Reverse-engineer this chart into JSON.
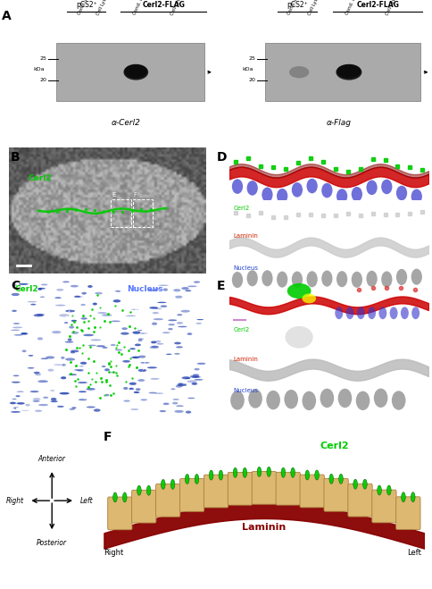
{
  "panel_A_label": "A",
  "panel_B_label": "B",
  "panel_C_label": "C",
  "panel_D_label": "D",
  "panel_E_label": "E",
  "panel_F_label": "F",
  "wb_left_title_pCS2": "pCS2⁺",
  "wb_left_title_cerl2": "Cerl2-FLAG",
  "wb_left_cols": [
    "Cond. Media",
    "Cell Lysate",
    "Cond. Media",
    "Cell Lysate"
  ],
  "wb_left_kda": [
    "25",
    "20"
  ],
  "wb_left_antibody": "α-Cerl2",
  "wb_right_title_pCS2": "pCS2⁺",
  "wb_right_title_cerl2": "Cerl2-FLAG",
  "wb_right_cols": [
    "Cond. Media",
    "Cell Lysate",
    "Cond. Media",
    "Cell Lysate"
  ],
  "wb_right_kda": [
    "25",
    "20"
  ],
  "wb_right_antibody": "α-Flag",
  "panel_B_cerl2_label": "Cerl2",
  "panel_B_E_label": "E",
  "panel_B_F_label": "F",
  "panel_C_cerl2_label": "Cerl2",
  "panel_C_nucleus_label": "Nucleus",
  "panel_D_cerl2_label": "Cerl2",
  "panel_D_laminin_label": "Laminin",
  "panel_D_nucleus_label": "Nucleus",
  "panel_E_cerl2_label": "Cerl2",
  "panel_E_laminin_label": "Laminin",
  "panel_E_nucleus_label": "Nucleus",
  "compass_anterior": "Anterior",
  "compass_posterior": "Posterior",
  "compass_right": "Right",
  "compass_left": "Left",
  "diagram_right": "Right",
  "diagram_left": "Left",
  "diagram_cerl2": "Cerl2",
  "diagram_laminin": "Laminin",
  "bg_white": "#ffffff",
  "color_green": "#00cc00",
  "color_red": "#cc2200",
  "color_blue": "#2244cc",
  "color_tan": "#ddb870",
  "color_dark_red": "#880000",
  "color_band": "#111111",
  "color_wb_bg": "#aaaaaa",
  "color_wb_bg2": "#999999"
}
